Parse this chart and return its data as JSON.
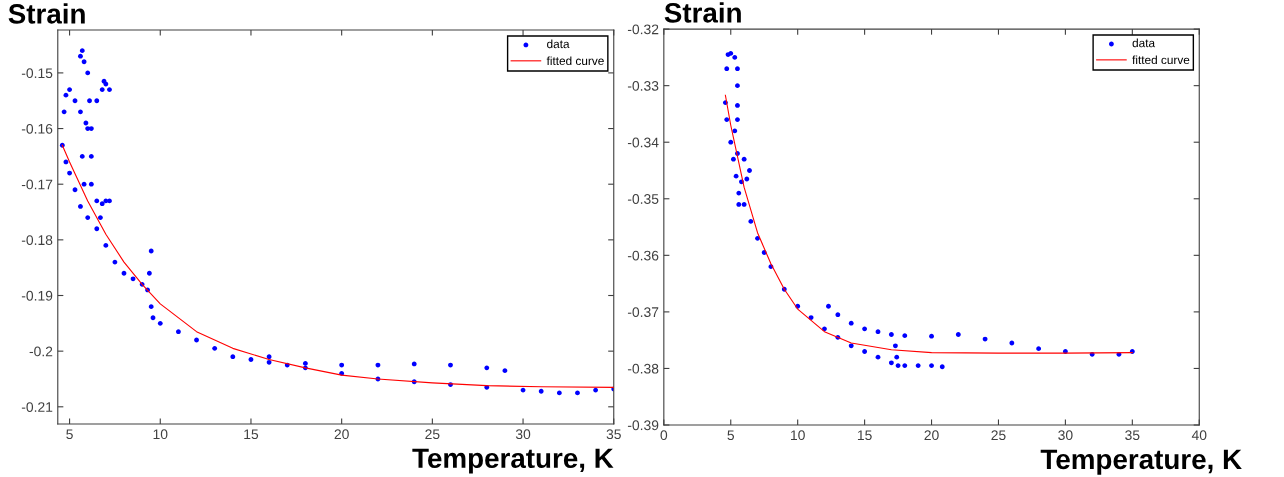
{
  "chart_data": [
    {
      "type": "scatter",
      "xlabel": "Temperature, K",
      "ylabel": "Strain",
      "xlim": [
        4.35,
        35
      ],
      "ylim": [
        -0.2131,
        -0.1423
      ],
      "xticks": [
        5,
        10,
        15,
        20,
        25,
        30,
        35
      ],
      "yticks": [
        -0.21,
        -0.2,
        -0.19,
        -0.18,
        -0.17,
        -0.16,
        -0.15
      ],
      "legend": "top right",
      "grid": false,
      "series": [
        {
          "name": "data",
          "marker": "circle",
          "color": "#0000ff",
          "x": [
            4.6,
            4.8,
            5,
            5.3,
            5.6,
            6,
            6.5,
            7,
            7.5,
            8,
            8.5,
            9,
            9.3,
            9.4,
            9.5,
            9.5,
            9.6,
            10,
            11,
            12,
            13,
            14,
            15,
            16,
            17,
            18,
            20,
            22,
            24,
            26,
            28,
            30,
            31,
            32,
            33,
            34,
            35,
            16,
            18,
            20,
            22,
            24,
            26,
            28,
            29,
            4.7,
            4.8,
            5,
            5.3,
            5.6,
            5.9,
            6,
            5.6,
            5.7,
            5.8,
            6,
            6.1,
            6.2,
            6.2,
            6.2,
            6.5,
            6.8,
            7,
            7.2,
            6.7,
            6.5,
            6.8,
            7,
            7.2,
            6.9,
            5.8,
            5.7
          ],
          "values": [
            -0.163,
            -0.166,
            -0.168,
            -0.171,
            -0.174,
            -0.176,
            -0.178,
            -0.181,
            -0.184,
            -0.186,
            -0.187,
            -0.188,
            -0.189,
            -0.186,
            -0.182,
            -0.192,
            -0.194,
            -0.195,
            -0.1965,
            -0.198,
            -0.1995,
            -0.201,
            -0.2015,
            -0.202,
            -0.2025,
            -0.203,
            -0.204,
            -0.205,
            -0.2055,
            -0.206,
            -0.2065,
            -0.207,
            -0.2072,
            -0.2075,
            -0.2075,
            -0.207,
            -0.2068,
            -0.201,
            -0.2022,
            -0.2025,
            -0.2025,
            -0.2023,
            -0.2025,
            -0.203,
            -0.2035,
            -0.157,
            -0.154,
            -0.153,
            -0.155,
            -0.157,
            -0.159,
            -0.16,
            -0.147,
            -0.146,
            -0.148,
            -0.15,
            -0.155,
            -0.16,
            -0.165,
            -0.17,
            -0.173,
            -0.1735,
            -0.173,
            -0.173,
            -0.176,
            -0.155,
            -0.153,
            -0.152,
            -0.153,
            -0.1515,
            -0.17,
            -0.165
          ]
        },
        {
          "name": "fitted curve",
          "type": "line",
          "marker": "none",
          "line_style": "solid",
          "color": "#ff0000",
          "x": [
            4.6,
            5,
            6,
            7,
            8,
            9,
            10,
            12,
            14,
            16,
            18,
            20,
            22,
            25,
            28,
            31,
            35
          ],
          "values": [
            -0.163,
            -0.166,
            -0.173,
            -0.179,
            -0.184,
            -0.188,
            -0.1915,
            -0.1965,
            -0.1995,
            -0.2015,
            -0.203,
            -0.2043,
            -0.205,
            -0.2057,
            -0.2062,
            -0.2064,
            -0.2065
          ]
        }
      ]
    },
    {
      "type": "scatter",
      "xlabel": "Temperature, K",
      "ylabel": "Strain",
      "xlim": [
        0,
        40
      ],
      "ylim": [
        -0.39,
        -0.32
      ],
      "xticks": [
        0,
        5,
        10,
        15,
        20,
        25,
        30,
        35,
        40
      ],
      "yticks": [
        -0.39,
        -0.38,
        -0.37,
        -0.36,
        -0.35,
        -0.34,
        -0.33,
        -0.32
      ],
      "legend": "top right",
      "grid": false,
      "series": [
        {
          "name": "data",
          "marker": "circle",
          "color": "#0000ff",
          "x": [
            4.6,
            4.7,
            5,
            5.2,
            5.4,
            5.6,
            6,
            6.5,
            7,
            7.5,
            8,
            9,
            10,
            11,
            12,
            13,
            14,
            15,
            16,
            17,
            17.5,
            18,
            19,
            20,
            20.8,
            12.3,
            13,
            14,
            15,
            16,
            17,
            17.3,
            17.4,
            18,
            20,
            22,
            24,
            26,
            28,
            30,
            32,
            34,
            35,
            4.7,
            4.8,
            5,
            5.3,
            5.5,
            5.5,
            5.5,
            5.5,
            5.3,
            5.5,
            6,
            6.4,
            6.2,
            5.8,
            5.6
          ],
          "values": [
            -0.333,
            -0.336,
            -0.34,
            -0.343,
            -0.346,
            -0.349,
            -0.351,
            -0.354,
            -0.357,
            -0.3595,
            -0.362,
            -0.366,
            -0.369,
            -0.371,
            -0.373,
            -0.3745,
            -0.376,
            -0.377,
            -0.378,
            -0.379,
            -0.3795,
            -0.3795,
            -0.3795,
            -0.3795,
            -0.3797,
            -0.369,
            -0.3705,
            -0.372,
            -0.373,
            -0.3735,
            -0.374,
            -0.376,
            -0.378,
            -0.3742,
            -0.3743,
            -0.374,
            -0.3748,
            -0.3755,
            -0.3765,
            -0.377,
            -0.3775,
            -0.3775,
            -0.377,
            -0.327,
            -0.3245,
            -0.3243,
            -0.325,
            -0.327,
            -0.33,
            -0.3335,
            -0.336,
            -0.338,
            -0.342,
            -0.343,
            -0.345,
            -0.3465,
            -0.347,
            -0.351
          ]
        },
        {
          "name": "fitted curve",
          "type": "line",
          "marker": "none",
          "line_style": "solid",
          "color": "#ff0000",
          "x": [
            4.6,
            5,
            6,
            7,
            8,
            9,
            10,
            12,
            14,
            17,
            20,
            25,
            30,
            35
          ],
          "values": [
            -0.3317,
            -0.337,
            -0.348,
            -0.356,
            -0.3615,
            -0.366,
            -0.3695,
            -0.3735,
            -0.3755,
            -0.3767,
            -0.3772,
            -0.3773,
            -0.3773,
            -0.3772
          ]
        }
      ]
    }
  ]
}
